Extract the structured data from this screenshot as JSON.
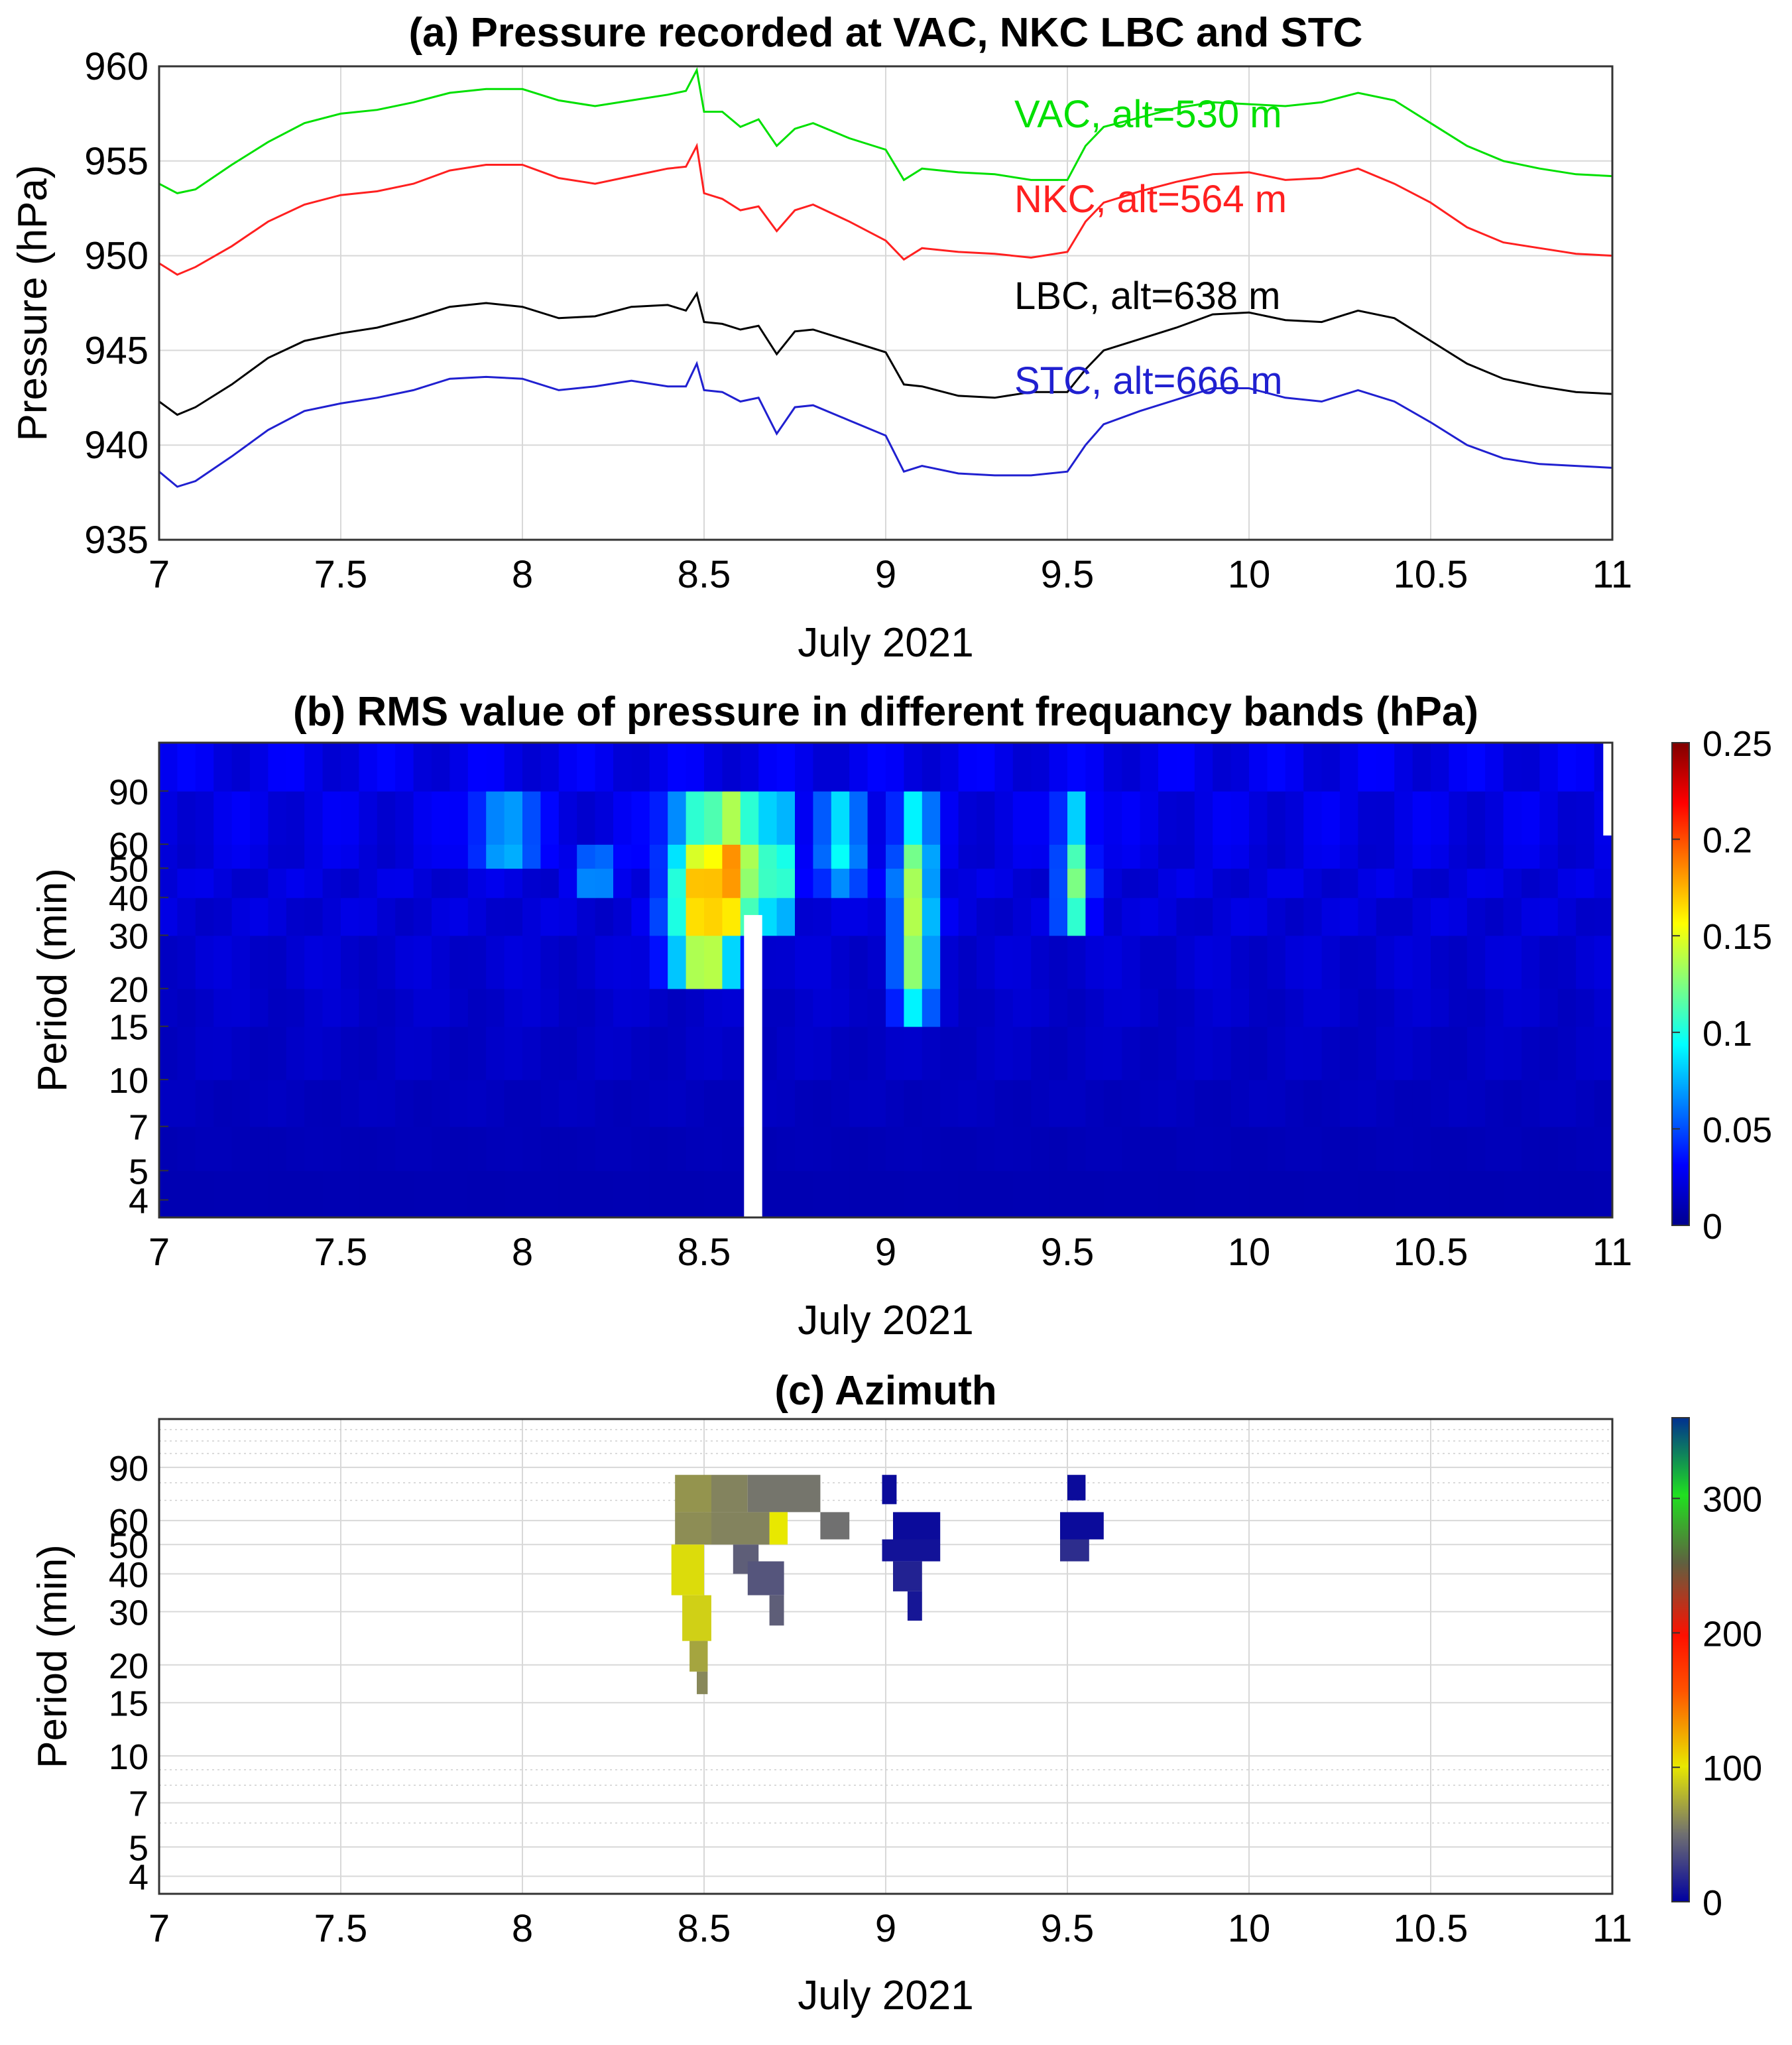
{
  "chart_data": [
    {
      "type": "line",
      "title": "(a) Pressure recorded at VAC, NKC LBC and STC",
      "xlabel": "July 2021",
      "ylabel": "Pressure (hPa)",
      "xlim": [
        7,
        11
      ],
      "ylim": [
        935,
        960
      ],
      "xticks": [
        "7",
        "7.5",
        "8",
        "8.5",
        "9",
        "9.5",
        "10",
        "10.5",
        "11"
      ],
      "yticks": [
        "935",
        "940",
        "945",
        "950",
        "955",
        "960"
      ],
      "grid": true,
      "series": [
        {
          "name": "VAC",
          "label": "VAC, alt=530 m",
          "color": "#00e000",
          "x": [
            7.0,
            7.05,
            7.1,
            7.2,
            7.3,
            7.4,
            7.5,
            7.6,
            7.7,
            7.8,
            7.9,
            8.0,
            8.1,
            8.2,
            8.3,
            8.4,
            8.45,
            8.48,
            8.5,
            8.55,
            8.6,
            8.65,
            8.7,
            8.75,
            8.8,
            8.9,
            9.0,
            9.05,
            9.1,
            9.2,
            9.3,
            9.4,
            9.5,
            9.55,
            9.6,
            9.7,
            9.8,
            9.9,
            10.0,
            10.1,
            10.2,
            10.3,
            10.4,
            10.5,
            10.6,
            10.7,
            10.8,
            10.9,
            11.0
          ],
          "y": [
            953.8,
            953.3,
            953.5,
            954.8,
            956.0,
            957.0,
            957.5,
            957.7,
            958.1,
            958.6,
            958.8,
            958.8,
            958.2,
            957.9,
            958.2,
            958.5,
            958.7,
            959.8,
            957.6,
            957.6,
            956.8,
            957.2,
            955.8,
            956.7,
            957.0,
            956.2,
            955.6,
            954.0,
            954.6,
            954.4,
            954.3,
            954.0,
            954.0,
            955.8,
            956.8,
            957.3,
            957.8,
            958.1,
            958.0,
            957.9,
            958.1,
            958.6,
            958.2,
            957.0,
            955.8,
            955.0,
            954.6,
            954.3,
            954.2
          ]
        },
        {
          "name": "NKC",
          "label": "NKC, alt=564 m",
          "color": "#ff2020",
          "x": [
            7.0,
            7.05,
            7.1,
            7.2,
            7.3,
            7.4,
            7.5,
            7.6,
            7.7,
            7.8,
            7.9,
            8.0,
            8.1,
            8.2,
            8.3,
            8.4,
            8.45,
            8.48,
            8.5,
            8.55,
            8.6,
            8.65,
            8.7,
            8.75,
            8.8,
            8.9,
            9.0,
            9.05,
            9.1,
            9.2,
            9.3,
            9.4,
            9.5,
            9.55,
            9.6,
            9.7,
            9.8,
            9.9,
            10.0,
            10.1,
            10.2,
            10.3,
            10.4,
            10.5,
            10.6,
            10.7,
            10.8,
            10.9,
            11.0
          ],
          "y": [
            949.6,
            949.0,
            949.4,
            950.5,
            951.8,
            952.7,
            953.2,
            953.4,
            953.8,
            954.5,
            954.8,
            954.8,
            954.1,
            953.8,
            954.2,
            954.6,
            954.7,
            955.8,
            953.3,
            953.0,
            952.4,
            952.6,
            951.3,
            952.4,
            952.7,
            951.8,
            950.8,
            949.8,
            950.4,
            950.2,
            950.1,
            949.9,
            950.2,
            951.8,
            952.8,
            953.4,
            953.9,
            954.3,
            954.4,
            954.0,
            954.1,
            954.6,
            953.8,
            952.8,
            951.5,
            950.7,
            950.4,
            950.1,
            950.0
          ]
        },
        {
          "name": "LBC",
          "label": "LBC, alt=638 m",
          "color": "#000000",
          "x": [
            7.0,
            7.05,
            7.1,
            7.2,
            7.3,
            7.4,
            7.5,
            7.6,
            7.7,
            7.8,
            7.9,
            8.0,
            8.1,
            8.2,
            8.3,
            8.4,
            8.45,
            8.48,
            8.5,
            8.55,
            8.6,
            8.65,
            8.7,
            8.75,
            8.8,
            8.9,
            9.0,
            9.05,
            9.1,
            9.2,
            9.3,
            9.4,
            9.5,
            9.55,
            9.6,
            9.7,
            9.8,
            9.9,
            10.0,
            10.1,
            10.2,
            10.3,
            10.4,
            10.5,
            10.6,
            10.7,
            10.8,
            10.9,
            11.0
          ],
          "y": [
            942.3,
            941.6,
            942.0,
            943.2,
            944.6,
            945.5,
            945.9,
            946.2,
            946.7,
            947.3,
            947.5,
            947.3,
            946.7,
            946.8,
            947.3,
            947.4,
            947.1,
            948.0,
            946.5,
            946.4,
            946.1,
            946.3,
            944.8,
            946.0,
            946.1,
            945.5,
            944.9,
            943.2,
            943.1,
            942.6,
            942.5,
            942.8,
            942.8,
            944.0,
            945.0,
            945.6,
            946.2,
            946.9,
            947.0,
            946.6,
            946.5,
            947.1,
            946.7,
            945.5,
            944.3,
            943.5,
            943.1,
            942.8,
            942.7
          ]
        },
        {
          "name": "STC",
          "label": "STC, alt=666 m",
          "color": "#2020d0",
          "x": [
            7.0,
            7.05,
            7.1,
            7.2,
            7.3,
            7.4,
            7.5,
            7.6,
            7.7,
            7.8,
            7.9,
            8.0,
            8.1,
            8.2,
            8.3,
            8.4,
            8.45,
            8.48,
            8.5,
            8.55,
            8.6,
            8.65,
            8.7,
            8.75,
            8.8,
            8.9,
            9.0,
            9.05,
            9.1,
            9.2,
            9.3,
            9.4,
            9.5,
            9.55,
            9.6,
            9.7,
            9.8,
            9.9,
            10.0,
            10.1,
            10.2,
            10.3,
            10.4,
            10.5,
            10.6,
            10.7,
            10.8,
            10.9,
            11.0
          ],
          "y": [
            938.6,
            937.8,
            938.1,
            939.4,
            940.8,
            941.8,
            942.2,
            942.5,
            942.9,
            943.5,
            943.6,
            943.5,
            942.9,
            943.1,
            943.4,
            943.1,
            943.1,
            944.3,
            942.9,
            942.8,
            942.3,
            942.5,
            940.6,
            942.0,
            942.1,
            941.3,
            940.5,
            938.6,
            938.9,
            938.5,
            938.4,
            938.4,
            938.6,
            940.0,
            941.1,
            941.8,
            942.4,
            943.0,
            943.0,
            942.5,
            942.3,
            942.9,
            942.3,
            941.2,
            940.0,
            939.3,
            939.0,
            938.9,
            938.8
          ]
        }
      ]
    },
    {
      "type": "heatmap",
      "title": "(b) RMS value of pressure in different frequancy bands (hPa)",
      "xlabel": "July 2021",
      "ylabel": "Period (min)",
      "xlim": [
        7,
        11
      ],
      "xticks": [
        "7",
        "7.5",
        "8",
        "8.5",
        "9",
        "9.5",
        "10",
        "10.5",
        "11"
      ],
      "yticks": [
        "4",
        "5",
        "7",
        "10",
        "15",
        "20",
        "30",
        "40",
        "50",
        "60",
        "90"
      ],
      "colorbar": {
        "min": 0,
        "max": 0.25,
        "ticks": [
          "0",
          "0.05",
          "0.1",
          "0.15",
          "0.2",
          "0.25"
        ]
      },
      "period_bands": [
        4,
        5,
        7,
        10,
        15,
        20,
        30,
        40,
        50,
        60,
        90,
        130
      ],
      "features": [
        {
          "t": 8.5,
          "dt": 0.09,
          "pmin": 18,
          "pmax": 95,
          "v": 0.16
        },
        {
          "t": 8.52,
          "dt": 0.03,
          "pmin": 55,
          "pmax": 65,
          "v": 0.21
        },
        {
          "t": 8.6,
          "dt": 0.04,
          "pmin": 30,
          "pmax": 95,
          "v": 0.13
        },
        {
          "t": 8.7,
          "dt": 0.04,
          "pmin": 30,
          "pmax": 95,
          "v": 0.12
        },
        {
          "t": 9.08,
          "dt": 0.05,
          "pmin": 15,
          "pmax": 95,
          "v": 0.12
        },
        {
          "t": 9.52,
          "dt": 0.04,
          "pmin": 25,
          "pmax": 95,
          "v": 0.1
        },
        {
          "t": 8.88,
          "dt": 0.06,
          "pmin": 40,
          "pmax": 95,
          "v": 0.07
        },
        {
          "t": 7.95,
          "dt": 0.08,
          "pmin": 45,
          "pmax": 90,
          "v": 0.06
        },
        {
          "t": 8.2,
          "dt": 0.05,
          "pmin": 35,
          "pmax": 70,
          "v": 0.05
        }
      ],
      "gap": {
        "t0": 8.61,
        "t1": 8.66,
        "pmax": 35
      }
    },
    {
      "type": "heatmap",
      "title": "(c) Azimuth",
      "xlabel": "July 2021",
      "ylabel": "Period (min)",
      "xlim": [
        7,
        11
      ],
      "xticks": [
        "7",
        "7.5",
        "8",
        "8.5",
        "9",
        "9.5",
        "10",
        "10.5",
        "11"
      ],
      "yticks": [
        "4",
        "5",
        "7",
        "10",
        "15",
        "20",
        "30",
        "40",
        "50",
        "60",
        "90"
      ],
      "colorbar": {
        "min": 0,
        "max": 360,
        "ticks": [
          "0",
          "100",
          "200",
          "300"
        ]
      },
      "cells": [
        {
          "t0": 8.42,
          "t1": 8.52,
          "p0": 64,
          "p1": 85,
          "az": 65
        },
        {
          "t0": 8.52,
          "t1": 8.62,
          "p0": 64,
          "p1": 85,
          "az": 58
        },
        {
          "t0": 8.62,
          "t1": 8.82,
          "p0": 64,
          "p1": 85,
          "az": 52
        },
        {
          "t0": 8.42,
          "t1": 8.52,
          "p0": 50,
          "p1": 64,
          "az": 62
        },
        {
          "t0": 8.52,
          "t1": 8.68,
          "p0": 50,
          "p1": 64,
          "az": 58
        },
        {
          "t0": 8.68,
          "t1": 8.73,
          "p0": 50,
          "p1": 64,
          "az": 100
        },
        {
          "t0": 8.82,
          "t1": 8.9,
          "p0": 52,
          "p1": 64,
          "az": 50
        },
        {
          "t0": 8.41,
          "t1": 8.5,
          "p0": 34,
          "p1": 50,
          "az": 95
        },
        {
          "t0": 8.58,
          "t1": 8.65,
          "p0": 40,
          "p1": 50,
          "az": 42
        },
        {
          "t0": 8.62,
          "t1": 8.72,
          "p0": 34,
          "p1": 44,
          "az": 38
        },
        {
          "t0": 8.44,
          "t1": 8.52,
          "p0": 24,
          "p1": 34,
          "az": 90
        },
        {
          "t0": 8.68,
          "t1": 8.72,
          "p0": 27,
          "p1": 34,
          "az": 42
        },
        {
          "t0": 8.46,
          "t1": 8.51,
          "p0": 19,
          "p1": 24,
          "az": 72
        },
        {
          "t0": 8.48,
          "t1": 8.51,
          "p0": 16,
          "p1": 19,
          "az": 60
        },
        {
          "t0": 8.99,
          "t1": 9.03,
          "p0": 68,
          "p1": 85,
          "az": 5
        },
        {
          "t0": 9.02,
          "t1": 9.15,
          "p0": 52,
          "p1": 64,
          "az": 5
        },
        {
          "t0": 8.99,
          "t1": 9.15,
          "p0": 44,
          "p1": 52,
          "az": 8
        },
        {
          "t0": 9.02,
          "t1": 9.1,
          "p0": 35,
          "p1": 44,
          "az": 15
        },
        {
          "t0": 9.06,
          "t1": 9.1,
          "p0": 28,
          "p1": 35,
          "az": 10
        },
        {
          "t0": 9.5,
          "t1": 9.55,
          "p0": 70,
          "p1": 85,
          "az": 5
        },
        {
          "t0": 9.48,
          "t1": 9.6,
          "p0": 52,
          "p1": 64,
          "az": 5
        },
        {
          "t0": 9.48,
          "t1": 9.56,
          "p0": 44,
          "p1": 52,
          "az": 20
        }
      ]
    }
  ]
}
